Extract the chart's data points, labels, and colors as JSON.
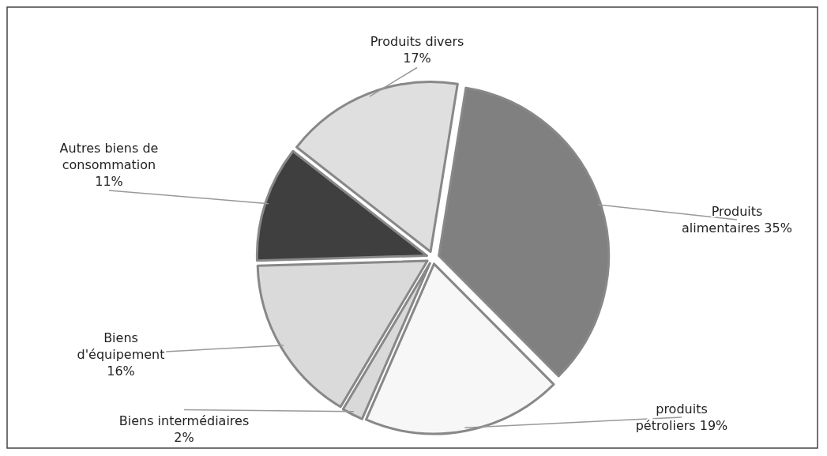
{
  "chart_data": {
    "type": "pie",
    "categories": [
      "Produits alimentaires",
      "produits pétroliers",
      "Biens intermédiaires",
      "Biens d'équipement",
      "Autres biens de consommation",
      "Produits divers"
    ],
    "values": [
      35,
      19,
      2,
      16,
      11,
      17
    ],
    "colors": [
      "#808080",
      "#f7f7f7",
      "#d9d9d9",
      "#dadada",
      "#3f3f3f",
      "#e0dfe0"
    ],
    "value_labels": [
      "35%",
      "19%",
      "2%",
      "16%",
      "11%",
      "17%"
    ]
  }
}
